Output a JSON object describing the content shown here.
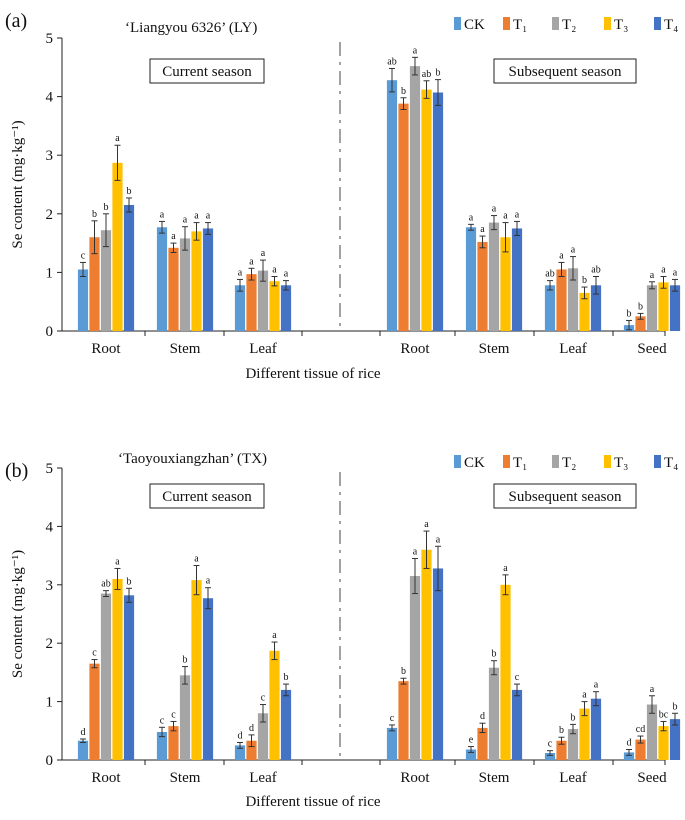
{
  "figure": {
    "x_categories": [
      "Root",
      "Stem",
      "Leaf",
      "Root",
      "Stem",
      "Leaf",
      "Seed"
    ],
    "treatment_labels": [
      "CK",
      "T₁",
      "T₂",
      "T₃",
      "T₄"
    ],
    "colors": [
      "#5b9bd5",
      "#ed7d31",
      "#a5a5a5",
      "#ffc000",
      "#4472c4"
    ],
    "current_label": "Current season",
    "subsequent_label": "Subsequent season"
  },
  "chart_data": [
    {
      "type": "bar",
      "panel_label": "(a)",
      "title": "‘Liangyou 6326’ (LY)",
      "xlabel": "Different tissue of rice",
      "ylabel": "Se content (mg·kg⁻¹)",
      "ylim": [
        0,
        5
      ],
      "yticks": [
        "0",
        "1",
        "2",
        "3",
        "4",
        "5"
      ],
      "series": [
        {
          "name": "CK",
          "values": [
            1.05,
            1.77,
            0.78,
            4.28,
            1.77,
            0.78,
            0.1
          ],
          "errors": [
            0.12,
            0.1,
            0.1,
            0.2,
            0.05,
            0.08,
            0.08
          ],
          "letters": [
            "c",
            "a",
            "a",
            "ab",
            "a",
            "ab",
            "b"
          ]
        },
        {
          "name": "T1",
          "values": [
            1.6,
            1.42,
            0.97,
            3.88,
            1.52,
            1.05,
            0.25
          ],
          "errors": [
            0.28,
            0.08,
            0.1,
            0.1,
            0.1,
            0.12,
            0.05
          ],
          "letters": [
            "b",
            "a",
            "a",
            "b",
            "a",
            "a",
            "b"
          ]
        },
        {
          "name": "T2",
          "values": [
            1.72,
            1.58,
            1.03,
            4.52,
            1.85,
            1.07,
            0.78
          ],
          "errors": [
            0.28,
            0.2,
            0.18,
            0.15,
            0.12,
            0.2,
            0.06
          ],
          "letters": [
            "b",
            "a",
            "a",
            "a",
            "a",
            "a",
            "a"
          ]
        },
        {
          "name": "T3",
          "values": [
            2.87,
            1.7,
            0.85,
            4.12,
            1.6,
            0.65,
            0.83
          ],
          "errors": [
            0.3,
            0.15,
            0.08,
            0.15,
            0.25,
            0.1,
            0.1
          ],
          "letters": [
            "a",
            "a",
            "a",
            "ab",
            "a",
            "b",
            "a"
          ]
        },
        {
          "name": "T4",
          "values": [
            2.15,
            1.75,
            0.78,
            4.07,
            1.75,
            0.78,
            0.78
          ],
          "errors": [
            0.12,
            0.1,
            0.08,
            0.22,
            0.12,
            0.15,
            0.1
          ],
          "letters": [
            "b",
            "a",
            "a",
            "b",
            "a",
            "ab",
            "a"
          ]
        }
      ]
    },
    {
      "type": "bar",
      "panel_label": "(b)",
      "title": "‘Taoyouxiangzhan’ (TX)",
      "xlabel": "Different tissue of rice",
      "ylabel": "Se content (mg·kg⁻¹)",
      "ylim": [
        0,
        5
      ],
      "yticks": [
        "0",
        "1",
        "2",
        "3",
        "4",
        "5"
      ],
      "series": [
        {
          "name": "CK",
          "values": [
            0.33,
            0.48,
            0.25,
            0.55,
            0.18,
            0.12,
            0.13
          ],
          "errors": [
            0.03,
            0.08,
            0.05,
            0.05,
            0.05,
            0.04,
            0.05
          ],
          "letters": [
            "d",
            "c",
            "d",
            "c",
            "e",
            "c",
            "d"
          ]
        },
        {
          "name": "T1",
          "values": [
            1.65,
            0.58,
            0.33,
            1.35,
            0.55,
            0.33,
            0.35
          ],
          "errors": [
            0.07,
            0.08,
            0.1,
            0.05,
            0.08,
            0.06,
            0.06
          ],
          "letters": [
            "c",
            "c",
            "d",
            "b",
            "d",
            "b",
            "cd"
          ]
        },
        {
          "name": "T2",
          "values": [
            2.85,
            1.45,
            0.8,
            3.15,
            1.58,
            0.53,
            0.95
          ],
          "errors": [
            0.05,
            0.15,
            0.15,
            0.3,
            0.12,
            0.08,
            0.15
          ],
          "letters": [
            "ab",
            "b",
            "c",
            "a",
            "b",
            "b",
            "a"
          ]
        },
        {
          "name": "T3",
          "values": [
            3.1,
            3.08,
            1.87,
            3.6,
            3.0,
            0.88,
            0.58
          ],
          "errors": [
            0.18,
            0.25,
            0.15,
            0.32,
            0.17,
            0.12,
            0.08
          ],
          "letters": [
            "a",
            "a",
            "a",
            "a",
            "a",
            "a",
            "bc"
          ]
        },
        {
          "name": "T4",
          "values": [
            2.82,
            2.77,
            1.2,
            3.28,
            1.2,
            1.05,
            0.7
          ],
          "errors": [
            0.12,
            0.18,
            0.1,
            0.38,
            0.1,
            0.12,
            0.1
          ],
          "letters": [
            "b",
            "a",
            "b",
            "a",
            "c",
            "a",
            "b"
          ]
        }
      ]
    }
  ]
}
